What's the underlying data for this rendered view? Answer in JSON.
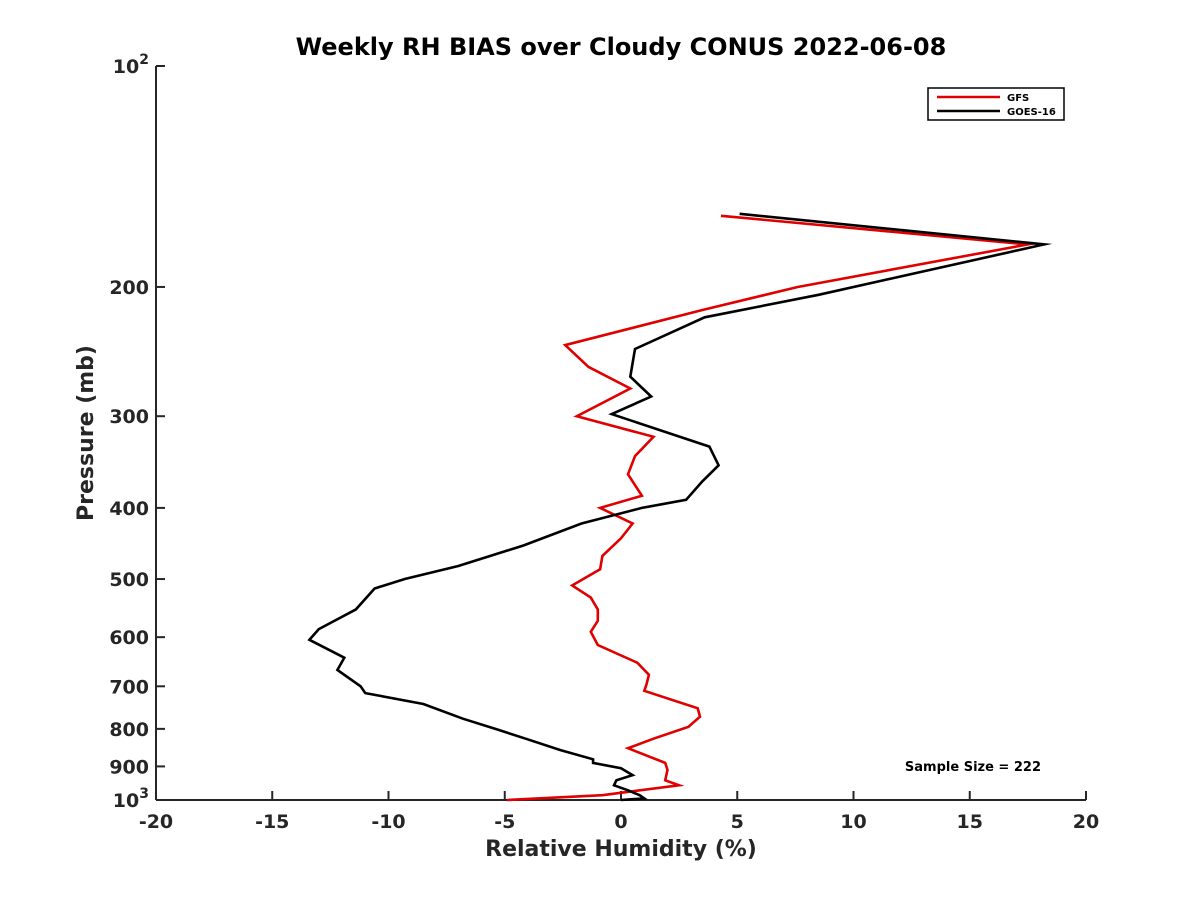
{
  "chart_data": {
    "type": "line",
    "title": "Weekly RH BIAS over Cloudy CONUS 2022-06-08",
    "xlabel": "Relative Humidity (%)",
    "ylabel": "Pressure (mb)",
    "xlim": [
      -20,
      20
    ],
    "ylim": [
      100,
      1000
    ],
    "y_scale": "log",
    "y_reversed": true,
    "grid": false,
    "legend_position": "top-right",
    "x_ticks": [
      {
        "value": -20,
        "label": "-20"
      },
      {
        "value": -15,
        "label": "-15"
      },
      {
        "value": -10,
        "label": "-10"
      },
      {
        "value": -5,
        "label": "-5"
      },
      {
        "value": 0,
        "label": "0"
      },
      {
        "value": 5,
        "label": "5"
      },
      {
        "value": 10,
        "label": "10"
      },
      {
        "value": 15,
        "label": "15"
      },
      {
        "value": 20,
        "label": "20"
      }
    ],
    "y_ticks": [
      {
        "value": 100,
        "base": "10",
        "exp": "2"
      },
      {
        "value": 200,
        "label": "200"
      },
      {
        "value": 300,
        "label": "300"
      },
      {
        "value": 400,
        "label": "400"
      },
      {
        "value": 500,
        "label": "500"
      },
      {
        "value": 600,
        "label": "600"
      },
      {
        "value": 700,
        "label": "700"
      },
      {
        "value": 800,
        "label": "800"
      },
      {
        "value": 900,
        "label": "900"
      },
      {
        "value": 1000,
        "base": "10",
        "exp": "3"
      }
    ],
    "annotation": "Sample Size = 222",
    "series": [
      {
        "name": "GFS",
        "color": "#e00000",
        "points": [
          [
            4.3,
            160
          ],
          [
            17.5,
            175
          ],
          [
            7.6,
            200
          ],
          [
            3.5,
            215
          ],
          [
            -2.4,
            240
          ],
          [
            -1.4,
            257
          ],
          [
            0.4,
            275
          ],
          [
            -1.9,
            300
          ],
          [
            1.4,
            320
          ],
          [
            0.6,
            340
          ],
          [
            0.3,
            360
          ],
          [
            0.9,
            385
          ],
          [
            -0.9,
            400
          ],
          [
            0.5,
            420
          ],
          [
            0.0,
            440
          ],
          [
            -0.8,
            465
          ],
          [
            -0.9,
            485
          ],
          [
            -2.1,
            510
          ],
          [
            -1.3,
            530
          ],
          [
            -1.0,
            550
          ],
          [
            -1.0,
            570
          ],
          [
            -1.3,
            590
          ],
          [
            -1.0,
            615
          ],
          [
            0.7,
            650
          ],
          [
            1.2,
            675
          ],
          [
            1.1,
            695
          ],
          [
            1.0,
            710
          ],
          [
            3.3,
            750
          ],
          [
            3.4,
            770
          ],
          [
            2.9,
            795
          ],
          [
            1.4,
            825
          ],
          [
            0.3,
            850
          ],
          [
            1.9,
            890
          ],
          [
            2.0,
            910
          ],
          [
            1.9,
            940
          ],
          [
            2.5,
            955
          ],
          [
            -0.8,
            985
          ],
          [
            -4.9,
            1000
          ]
        ]
      },
      {
        "name": "GOES-16",
        "color": "#000000",
        "points": [
          [
            5.1,
            159
          ],
          [
            18.2,
            175
          ],
          [
            8.5,
            205
          ],
          [
            3.6,
            220
          ],
          [
            0.6,
            243
          ],
          [
            0.4,
            265
          ],
          [
            1.3,
            282
          ],
          [
            -0.4,
            298
          ],
          [
            3.8,
            330
          ],
          [
            4.2,
            350
          ],
          [
            3.5,
            368
          ],
          [
            2.8,
            390
          ],
          [
            0.9,
            400
          ],
          [
            -1.7,
            420
          ],
          [
            -4.2,
            450
          ],
          [
            -7.0,
            480
          ],
          [
            -9.3,
            500
          ],
          [
            -10.6,
            515
          ],
          [
            -11.4,
            550
          ],
          [
            -13.0,
            585
          ],
          [
            -13.4,
            605
          ],
          [
            -11.9,
            640
          ],
          [
            -12.2,
            665
          ],
          [
            -11.2,
            700
          ],
          [
            -11.0,
            715
          ],
          [
            -8.5,
            740
          ],
          [
            -6.8,
            775
          ],
          [
            -5.4,
            800
          ],
          [
            -4.1,
            825
          ],
          [
            -2.6,
            855
          ],
          [
            -1.2,
            880
          ],
          [
            -1.2,
            890
          ],
          [
            0.0,
            905
          ],
          [
            0.5,
            925
          ],
          [
            -0.2,
            940
          ],
          [
            -0.3,
            955
          ],
          [
            0.3,
            970
          ],
          [
            0.8,
            985
          ],
          [
            1.0,
            995
          ],
          [
            0.0,
            1000
          ]
        ]
      }
    ]
  }
}
